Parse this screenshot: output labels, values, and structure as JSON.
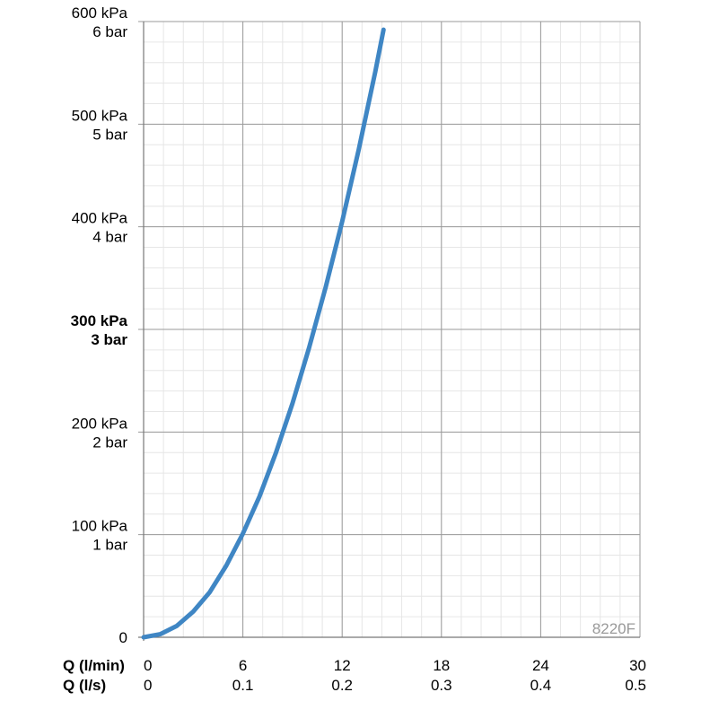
{
  "chart_data": {
    "type": "line",
    "code_label": "8220F",
    "x_axis_primary": {
      "label": "Q (l/min)",
      "ticks": [
        "0",
        "6",
        "12",
        "18",
        "24",
        "30"
      ],
      "range": [
        0,
        30
      ]
    },
    "x_axis_secondary": {
      "label": "Q (l/s)",
      "ticks": [
        "0",
        "0.1",
        "0.2",
        "0.3",
        "0.4",
        "0.5"
      ]
    },
    "y_axis": {
      "range": [
        0,
        600
      ],
      "ticks": [
        {
          "value": 0,
          "kpa": "0",
          "bar": ""
        },
        {
          "value": 100,
          "kpa": "100 kPa",
          "bar": "1 bar"
        },
        {
          "value": 200,
          "kpa": "200 kPa",
          "bar": "2 bar"
        },
        {
          "value": 300,
          "kpa": "300 kPa",
          "bar": "3 bar",
          "bold": true
        },
        {
          "value": 400,
          "kpa": "400 kPa",
          "bar": "4 bar"
        },
        {
          "value": 500,
          "kpa": "500 kPa",
          "bar": "5 bar"
        },
        {
          "value": 600,
          "kpa": "600 kPa",
          "bar": "6 bar"
        }
      ]
    },
    "grid": true,
    "series": [
      {
        "color": "#3f86c4",
        "x": [
          0,
          1,
          2,
          3,
          4,
          5,
          6,
          7,
          8,
          9,
          10,
          11,
          12,
          13,
          14,
          14.5
        ],
        "y": [
          0,
          3,
          11,
          25,
          44,
          70,
          101,
          137,
          180,
          228,
          282,
          341,
          405,
          475,
          551,
          592
        ]
      }
    ]
  }
}
